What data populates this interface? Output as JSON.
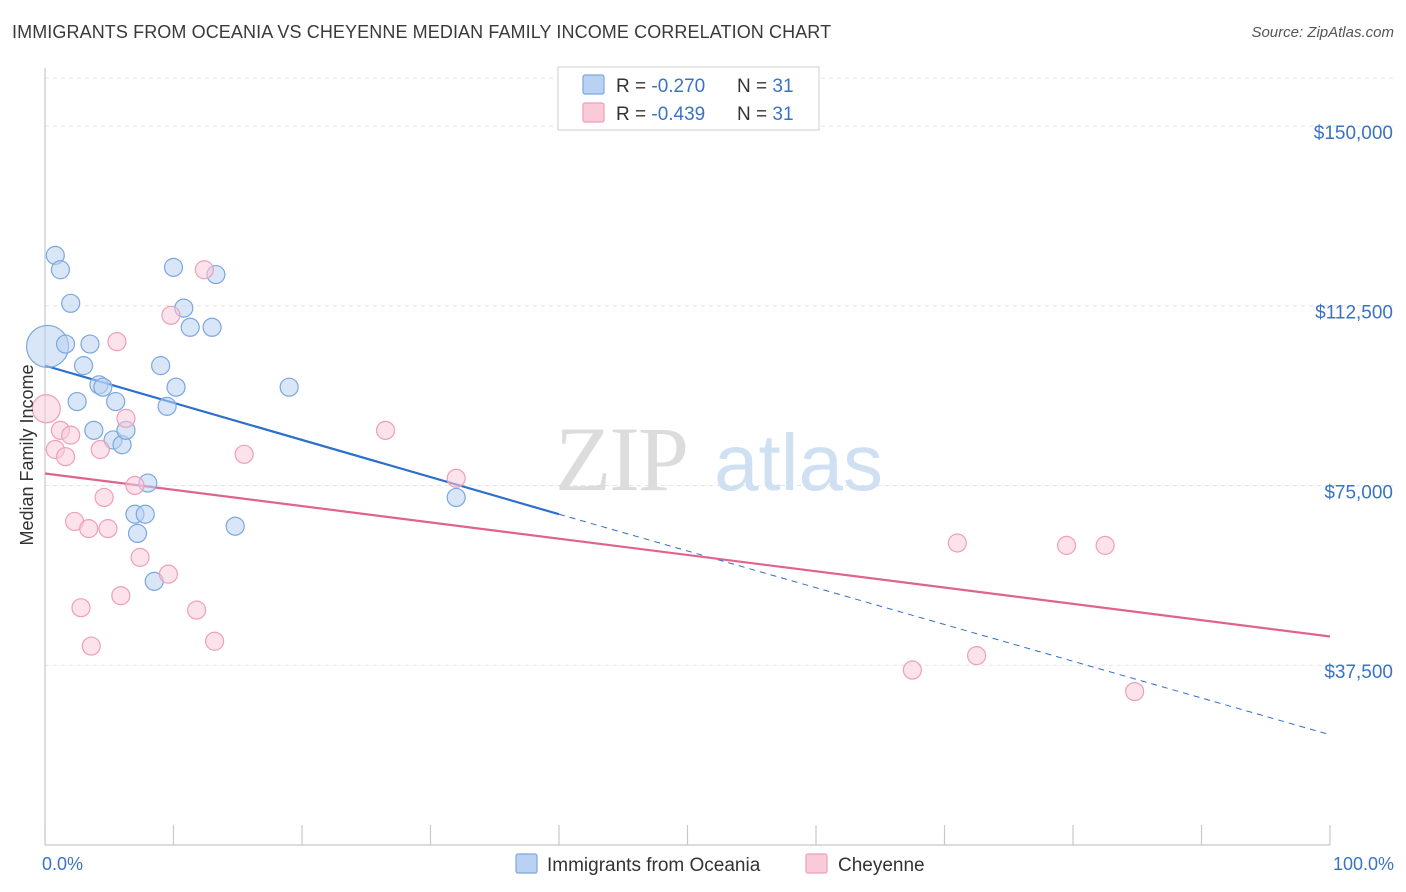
{
  "title": "IMMIGRANTS FROM OCEANIA VS CHEYENNE MEDIAN FAMILY INCOME CORRELATION CHART",
  "source": "Source: ZipAtlas.com",
  "watermark": {
    "zip": "ZIP",
    "atlas": "atlas"
  },
  "chart_data": {
    "type": "scatter",
    "xlabel": "",
    "ylabel": "Median Family Income",
    "xlim": [
      0,
      100
    ],
    "ylim": [
      0,
      160000
    ],
    "x_tick_labels": {
      "min": "0.0%",
      "max": "100.0%"
    },
    "y_ticks": [
      {
        "value": 37500,
        "label": "$37,500"
      },
      {
        "value": 75000,
        "label": "$75,000"
      },
      {
        "value": 112500,
        "label": "$112,500"
      },
      {
        "value": 150000,
        "label": "$150,000"
      }
    ],
    "grid": true,
    "legend_position": "top-center",
    "series": [
      {
        "name": "Immigrants from Oceania",
        "color": "#7ba7e0",
        "fill": "#b9d2f3",
        "line_color": "#2d6fcc",
        "r": "-0.270",
        "n": "31",
        "trend": {
          "x0": 0,
          "y0": 100000,
          "x1": 40,
          "y1": 69000,
          "dash_to_x": 100,
          "dash_to_y": 23000
        },
        "points": [
          {
            "x": 0.2,
            "y": 104000,
            "size": "large"
          },
          {
            "x": 0.8,
            "y": 123000
          },
          {
            "x": 1.2,
            "y": 120000
          },
          {
            "x": 2.0,
            "y": 113000
          },
          {
            "x": 1.6,
            "y": 104500
          },
          {
            "x": 3.0,
            "y": 100000
          },
          {
            "x": 3.5,
            "y": 104500
          },
          {
            "x": 2.5,
            "y": 92500
          },
          {
            "x": 4.2,
            "y": 96000
          },
          {
            "x": 4.5,
            "y": 95500
          },
          {
            "x": 5.5,
            "y": 92500
          },
          {
            "x": 3.8,
            "y": 86500
          },
          {
            "x": 5.3,
            "y": 84500
          },
          {
            "x": 6.0,
            "y": 83500
          },
          {
            "x": 6.3,
            "y": 86500
          },
          {
            "x": 8.0,
            "y": 75500
          },
          {
            "x": 7.0,
            "y": 69000
          },
          {
            "x": 7.8,
            "y": 69000
          },
          {
            "x": 7.2,
            "y": 65000
          },
          {
            "x": 8.5,
            "y": 55000
          },
          {
            "x": 9.0,
            "y": 100000
          },
          {
            "x": 9.5,
            "y": 91500
          },
          {
            "x": 10.2,
            "y": 95500
          },
          {
            "x": 10.0,
            "y": 120500
          },
          {
            "x": 10.8,
            "y": 112000
          },
          {
            "x": 11.3,
            "y": 108000
          },
          {
            "x": 13.0,
            "y": 108000
          },
          {
            "x": 13.3,
            "y": 119000
          },
          {
            "x": 14.8,
            "y": 66500
          },
          {
            "x": 19.0,
            "y": 95500
          },
          {
            "x": 32.0,
            "y": 72500
          }
        ]
      },
      {
        "name": "Cheyenne",
        "color": "#ef9fb8",
        "fill": "#f9cad8",
        "line_color": "#e0628e",
        "r": "-0.439",
        "n": "31",
        "trend": {
          "x0": 0,
          "y0": 77500,
          "x1": 100,
          "y1": 43500
        },
        "points": [
          {
            "x": 0.1,
            "y": 91000,
            "size": "medium"
          },
          {
            "x": 0.8,
            "y": 82500
          },
          {
            "x": 1.2,
            "y": 86500
          },
          {
            "x": 1.6,
            "y": 81000
          },
          {
            "x": 2.0,
            "y": 85500
          },
          {
            "x": 2.3,
            "y": 67500
          },
          {
            "x": 2.8,
            "y": 49500
          },
          {
            "x": 3.4,
            "y": 66000
          },
          {
            "x": 3.6,
            "y": 41500
          },
          {
            "x": 4.3,
            "y": 82500
          },
          {
            "x": 4.6,
            "y": 72500
          },
          {
            "x": 4.9,
            "y": 66000
          },
          {
            "x": 5.6,
            "y": 105000
          },
          {
            "x": 5.9,
            "y": 52000
          },
          {
            "x": 6.3,
            "y": 89000
          },
          {
            "x": 7.0,
            "y": 75000
          },
          {
            "x": 7.4,
            "y": 60000
          },
          {
            "x": 9.6,
            "y": 56500
          },
          {
            "x": 9.8,
            "y": 110500
          },
          {
            "x": 11.8,
            "y": 49000
          },
          {
            "x": 12.4,
            "y": 120000
          },
          {
            "x": 13.2,
            "y": 42500
          },
          {
            "x": 15.5,
            "y": 81500
          },
          {
            "x": 26.5,
            "y": 86500
          },
          {
            "x": 32.0,
            "y": 76500
          },
          {
            "x": 67.5,
            "y": 36500
          },
          {
            "x": 71.0,
            "y": 63000
          },
          {
            "x": 72.5,
            "y": 39500
          },
          {
            "x": 79.5,
            "y": 62500
          },
          {
            "x": 82.5,
            "y": 62500
          },
          {
            "x": 84.8,
            "y": 32000
          }
        ]
      }
    ]
  }
}
